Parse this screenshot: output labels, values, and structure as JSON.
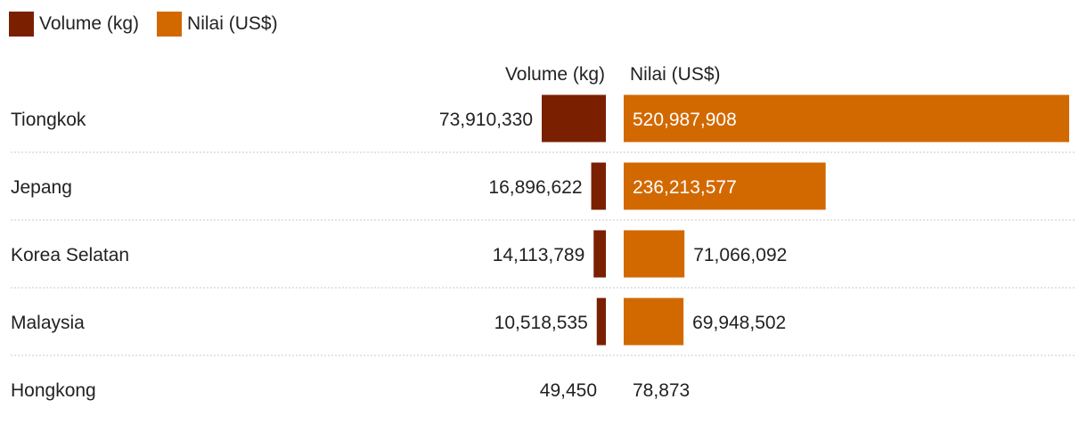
{
  "legend": {
    "items": [
      {
        "label": "Volume (kg)",
        "color": "#7a2000"
      },
      {
        "label": "Nilai (US$)",
        "color": "#d26900"
      }
    ]
  },
  "chart_data": {
    "type": "bar",
    "layout_kind": "diverging-dual-bar-table",
    "column_headers": [
      "Volume (kg)",
      "Nilai (US$)"
    ],
    "categories": [
      "Tiongkok",
      "Jepang",
      "Korea Selatan",
      "Malaysia",
      "Hongkong"
    ],
    "series": [
      {
        "name": "Volume (kg)",
        "color": "#7a2000",
        "values": [
          73910330,
          16896622,
          14113789,
          10518535,
          49450
        ],
        "labels": [
          "73,910,330",
          "16,896,622",
          "14,113,789",
          "10,518,535",
          "49,450"
        ]
      },
      {
        "name": "Nilai (US$)",
        "color": "#d26900",
        "values": [
          520987908,
          236213577,
          71066092,
          69948502,
          78873
        ],
        "labels": [
          "520,987,908",
          "236,213,577",
          "71,066,092",
          "69,948,502",
          "78,873"
        ]
      }
    ],
    "legend_position": "top-left",
    "grid": false
  }
}
